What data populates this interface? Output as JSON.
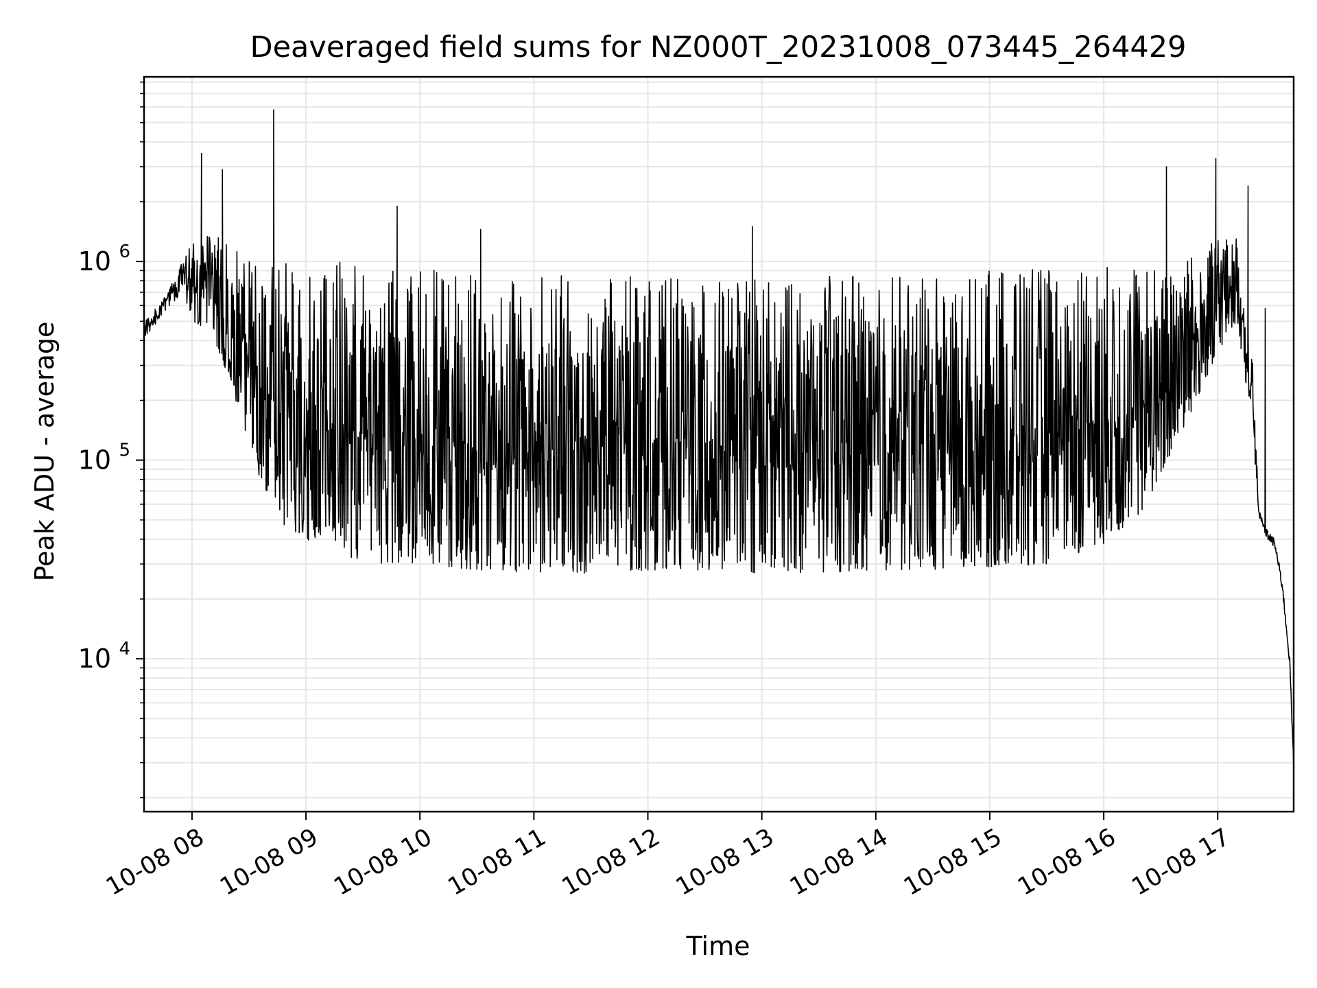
{
  "chart_data": {
    "type": "line",
    "title": "Deaveraged field sums for NZ000T_20231008_073445_264429",
    "xlabel": "Time",
    "ylabel": "Peak ADU - average",
    "x_axis": {
      "scale": "time",
      "range": [
        "2023-10-08T07:34:45",
        "2023-10-08T17:40:00"
      ],
      "ticks": [
        "2023-10-08T08:00",
        "2023-10-08T09:00",
        "2023-10-08T10:00",
        "2023-10-08T11:00",
        "2023-10-08T12:00",
        "2023-10-08T13:00",
        "2023-10-08T14:00",
        "2023-10-08T15:00",
        "2023-10-08T16:00",
        "2023-10-08T17:00"
      ],
      "tick_labels": [
        "10-08 08",
        "10-08 09",
        "10-08 10",
        "10-08 11",
        "10-08 12",
        "10-08 13",
        "10-08 14",
        "10-08 15",
        "10-08 16",
        "10-08 17"
      ],
      "tick_label_rotation_deg": 30
    },
    "y_axis": {
      "scale": "log",
      "range": [
        1700,
        8500000
      ],
      "major_ticks": [
        10000,
        100000,
        1000000
      ],
      "tick_labels": [
        "10^4",
        "10^5",
        "10^6"
      ]
    },
    "grid": true,
    "line_color": "#000000",
    "series": [
      {
        "name": "",
        "x": [
          "2023-10-08T07:35",
          "2023-10-08T07:45",
          "2023-10-08T07:55",
          "2023-10-08T08:00",
          "2023-10-08T08:10",
          "2023-10-08T08:20",
          "2023-10-08T08:30",
          "2023-10-08T08:40",
          "2023-10-08T08:50",
          "2023-10-08T09:00",
          "2023-10-08T09:20",
          "2023-10-08T09:40",
          "2023-10-08T10:00",
          "2023-10-08T10:30",
          "2023-10-08T11:00",
          "2023-10-08T11:30",
          "2023-10-08T12:00",
          "2023-10-08T12:30",
          "2023-10-08T13:00",
          "2023-10-08T13:30",
          "2023-10-08T14:00",
          "2023-10-08T14:30",
          "2023-10-08T15:00",
          "2023-10-08T15:30",
          "2023-10-08T16:00",
          "2023-10-08T16:20",
          "2023-10-08T16:40",
          "2023-10-08T17:00",
          "2023-10-08T17:10",
          "2023-10-08T17:18",
          "2023-10-08T17:22",
          "2023-10-08T17:26",
          "2023-10-08T17:30",
          "2023-10-08T17:34",
          "2023-10-08T17:38",
          "2023-10-08T17:40"
        ],
        "envelope_low": [
          400000,
          550000,
          700000,
          500000,
          450000,
          250000,
          120000,
          60000,
          45000,
          40000,
          33000,
          30000,
          30000,
          28000,
          27000,
          27000,
          28000,
          28000,
          27000,
          27000,
          28000,
          28000,
          29000,
          30000,
          38000,
          55000,
          130000,
          350000,
          500000,
          150000,
          48000,
          40000,
          36000,
          22000,
          9000,
          2600
        ],
        "envelope_high": [
          500000,
          650000,
          1000000,
          1300000,
          1400000,
          1200000,
          1100000,
          1050000,
          1000000,
          1000000,
          1000000,
          950000,
          950000,
          900000,
          880000,
          850000,
          850000,
          850000,
          850000,
          850000,
          850000,
          870000,
          900000,
          920000,
          950000,
          1000000,
          1100000,
          1300000,
          1300000,
          400000,
          55000,
          45000,
          40000,
          25000,
          10000,
          3000
        ],
        "spikes": [
          {
            "x": "2023-10-08T08:05",
            "y": 3500000
          },
          {
            "x": "2023-10-08T08:16",
            "y": 2900000
          },
          {
            "x": "2023-10-08T08:43",
            "y": 5800000
          },
          {
            "x": "2023-10-08T09:48",
            "y": 1900000
          },
          {
            "x": "2023-10-08T10:32",
            "y": 1450000
          },
          {
            "x": "2023-10-08T12:55",
            "y": 1500000
          },
          {
            "x": "2023-10-08T16:33",
            "y": 3000000
          },
          {
            "x": "2023-10-08T16:59",
            "y": 3300000
          },
          {
            "x": "2023-10-08T17:16",
            "y": 2400000
          },
          {
            "x": "2023-10-08T17:25",
            "y": 580000
          }
        ]
      }
    ]
  }
}
